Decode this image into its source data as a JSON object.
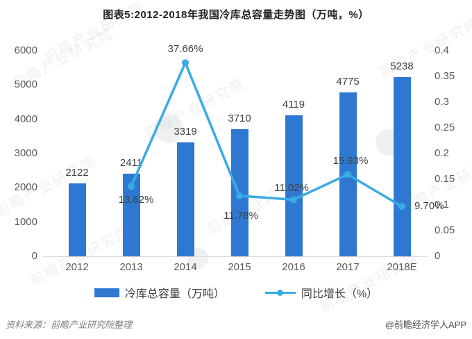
{
  "title": "图表5:2012-2018年我国冷库总容量走势图（万吨，%）",
  "chart_data": {
    "type": "bar",
    "subtype": "bar+line combo, dual axis",
    "categories": [
      "2012",
      "2013",
      "2014",
      "2015",
      "2016",
      "2017",
      "2018E"
    ],
    "series": [
      {
        "name": "冷库总容量（万吨）",
        "type": "bar",
        "axis": "left",
        "values": [
          2122,
          2411,
          3319,
          3710,
          4119,
          4775,
          5238
        ],
        "labels": [
          "2122",
          "2411",
          "3319",
          "3710",
          "4119",
          "4775",
          "5238"
        ],
        "color": "#2E78D2"
      },
      {
        "name": "同比增长（%）",
        "type": "line",
        "axis": "right",
        "values": [
          null,
          13.62,
          37.66,
          11.78,
          11.02,
          15.93,
          9.7
        ],
        "labels": [
          "",
          "13.62%",
          "37.66%",
          "11.78%",
          "11.02%",
          "15.93%",
          "9.70%"
        ],
        "color": "#39ABE3"
      }
    ],
    "left_axis": {
      "min": 0,
      "max": 6000,
      "ticks": [
        "0",
        "1000",
        "2000",
        "3000",
        "4000",
        "5000",
        "6000"
      ]
    },
    "right_axis": {
      "min": 0,
      "max": 0.4,
      "ticks": [
        "0",
        "0.05",
        "0.1",
        "0.15",
        "0.2",
        "0.25",
        "0.3",
        "0.35",
        "0.4"
      ]
    },
    "title": "图表5:2012-2018年我国冷库总容量走势图（万吨，%）",
    "grid": false,
    "legend_position": "bottom"
  },
  "footer": {
    "source": "资料来源：前瞻产业研究院整理",
    "brand": "@前瞻经济学人APP"
  },
  "watermark": {
    "text": "前瞻产业研究院"
  },
  "colors": {
    "bar": "#2E78D2",
    "line": "#39ABE3",
    "axis_text": "#595959",
    "label_text": "#3F3F3F",
    "axis_line": "#D9D9D9",
    "title_text": "#222222"
  }
}
